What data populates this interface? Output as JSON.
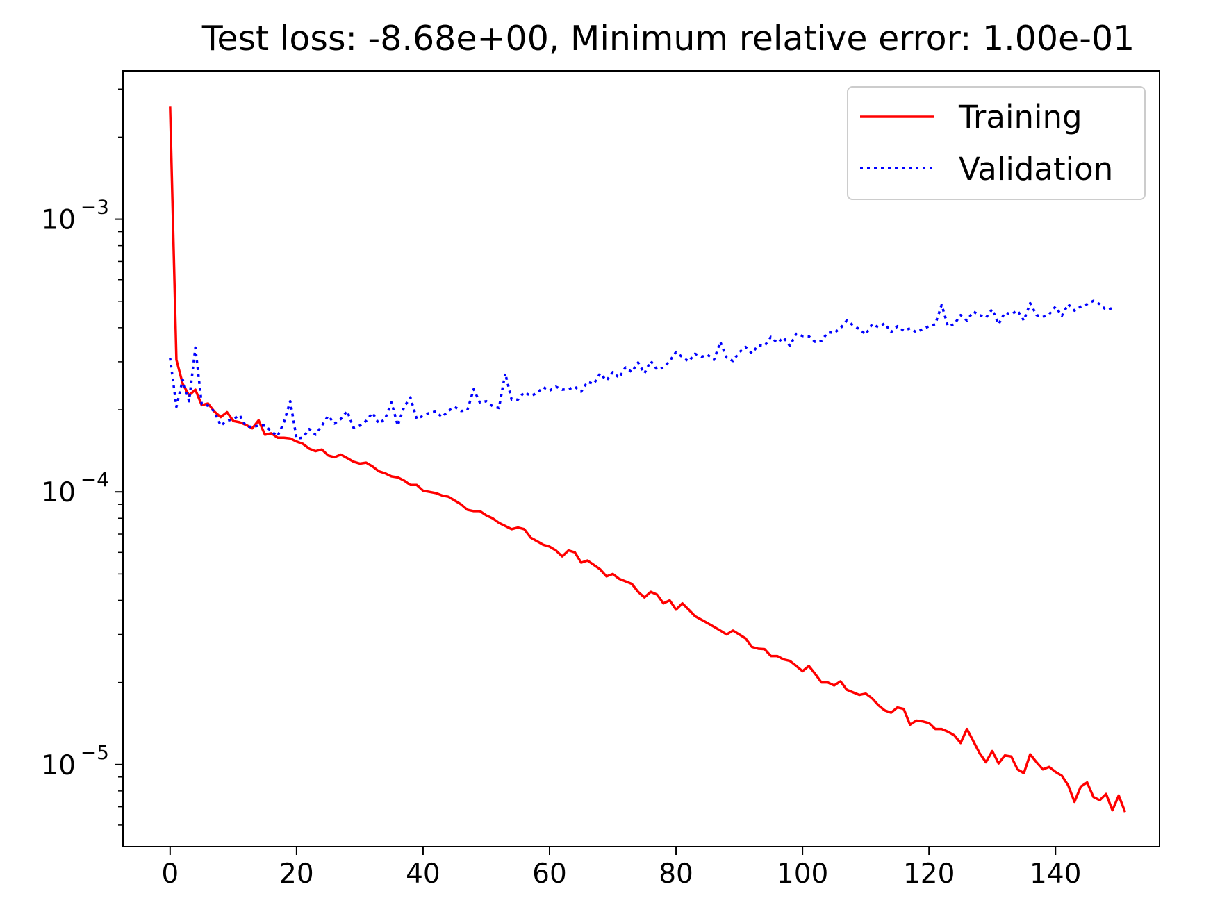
{
  "chart_data": {
    "type": "line",
    "title": "Test loss: -8.68e+00, Minimum relative error: 1.00e-01",
    "xlabel": "",
    "ylabel": "",
    "yscale": "log",
    "xlim": [
      -7.45,
      156.45
    ],
    "ylim": [
      5e-06,
      0.0035
    ],
    "grid": false,
    "legend_position": "top-right",
    "x_ticks": [
      0,
      20,
      40,
      60,
      80,
      100,
      120,
      140
    ],
    "x_tick_labels": [
      "0",
      "20",
      "40",
      "60",
      "80",
      "100",
      "120",
      "140"
    ],
    "y_ticks": [
      1e-05,
      0.0001,
      0.001
    ],
    "y_tick_labels": [
      "10",
      "10",
      "10"
    ],
    "y_tick_exponents": [
      "−5",
      "−4",
      "−3"
    ],
    "series": [
      {
        "name": "Training",
        "color": "#ff0000",
        "style": "solid",
        "x_start": 0,
        "values": [
          0.00259,
          0.000305,
          0.000249,
          0.000226,
          0.000237,
          0.000208,
          0.000211,
          0.000197,
          0.000188,
          0.000196,
          0.000182,
          0.00018,
          0.000176,
          0.000171,
          0.000183,
          0.000162,
          0.000164,
          0.000158,
          0.000158,
          0.000157,
          0.000153,
          0.00015,
          0.000144,
          0.000141,
          0.000143,
          0.000136,
          0.000134,
          0.000137,
          0.000133,
          0.000129,
          0.000127,
          0.000128,
          0.000124,
          0.000119,
          0.000117,
          0.000114,
          0.000113,
          0.00011,
          0.000106,
          0.000106,
          0.000101,
          0.0001,
          9.9e-05,
          9.7e-05,
          9.6e-05,
          9.3e-05,
          9e-05,
          8.6e-05,
          8.5e-05,
          8.5e-05,
          8.2e-05,
          8e-05,
          7.7e-05,
          7.5e-05,
          7.3e-05,
          7.4e-05,
          7.3e-05,
          6.8e-05,
          6.6e-05,
          6.4e-05,
          6.3e-05,
          6.1e-05,
          5.8e-05,
          6.1e-05,
          6e-05,
          5.5e-05,
          5.6e-05,
          5.4e-05,
          5.2e-05,
          4.9e-05,
          5e-05,
          4.8e-05,
          4.7e-05,
          4.6e-05,
          4.3e-05,
          4.1e-05,
          4.3e-05,
          4.2e-05,
          3.9e-05,
          4e-05,
          3.7e-05,
          3.9e-05,
          3.7e-05,
          3.5e-05,
          3.4e-05,
          3.3e-05,
          3.2e-05,
          3.1e-05,
          3e-05,
          3.1e-05,
          3e-05,
          2.9e-05,
          2.7e-05,
          2.66e-05,
          2.65e-05,
          2.5e-05,
          2.5e-05,
          2.43e-05,
          2.4e-05,
          2.3e-05,
          2.2e-05,
          2.3e-05,
          2.15e-05,
          2e-05,
          2e-05,
          1.95e-05,
          2.02e-05,
          1.88e-05,
          1.84e-05,
          1.8e-05,
          1.82e-05,
          1.75e-05,
          1.65e-05,
          1.58e-05,
          1.55e-05,
          1.62e-05,
          1.6e-05,
          1.4e-05,
          1.45e-05,
          1.44e-05,
          1.42e-05,
          1.35e-05,
          1.35e-05,
          1.32e-05,
          1.28e-05,
          1.2e-05,
          1.35e-05,
          1.22e-05,
          1.1e-05,
          1.02e-05,
          1.12e-05,
          1.01e-05,
          1.08e-05,
          1.07e-05,
          9.6e-06,
          9.3e-06,
          1.09e-05,
          1.02e-05,
          9.6e-06,
          9.8e-06,
          9.4e-06,
          9.1e-06,
          8.4e-06,
          7.3e-06,
          8.3e-06,
          8.6e-06,
          7.6e-06,
          7.4e-06,
          7.8e-06,
          6.8e-06,
          7.7e-06,
          6.7e-06
        ]
      },
      {
        "name": "Validation",
        "color": "#0000ff",
        "style": "dotted",
        "x_start": 0,
        "values": [
          0.00031,
          0.000205,
          0.000258,
          0.000215,
          0.000338,
          0.00021,
          0.000207,
          0.000197,
          0.000175,
          0.000182,
          0.000185,
          0.000191,
          0.000174,
          0.000173,
          0.000175,
          0.000175,
          0.000167,
          0.00016,
          0.00018,
          0.000215,
          0.000157,
          0.000158,
          0.00017,
          0.000162,
          0.000175,
          0.00019,
          0.000178,
          0.000185,
          0.000198,
          0.000172,
          0.000175,
          0.000182,
          0.000195,
          0.000178,
          0.000185,
          0.000213,
          0.000175,
          0.000205,
          0.000222,
          0.000185,
          0.00019,
          0.000195,
          0.000197,
          0.000188,
          0.000198,
          0.000205,
          0.000198,
          0.000199,
          0.000238,
          0.000212,
          0.000215,
          0.000206,
          0.000203,
          0.000272,
          0.000218,
          0.000218,
          0.000232,
          0.000225,
          0.00023,
          0.000242,
          0.000235,
          0.000243,
          0.000237,
          0.000238,
          0.000243,
          0.000233,
          0.000253,
          0.000249,
          0.000272,
          0.000256,
          0.000275,
          0.000262,
          0.000286,
          0.000275,
          0.000298,
          0.000272,
          0.000302,
          0.000281,
          0.000285,
          0.000302,
          0.000326,
          0.000312,
          0.000301,
          0.000321,
          0.000313,
          0.000318,
          0.000305,
          0.000355,
          0.000311,
          0.000302,
          0.000325,
          0.00034,
          0.000322,
          0.000345,
          0.000343,
          0.00037,
          0.000352,
          0.000368,
          0.000343,
          0.00038,
          0.000373,
          0.000372,
          0.000355,
          0.000358,
          0.000385,
          0.000383,
          0.000398,
          0.000425,
          0.000408,
          0.000395,
          0.000378,
          0.000412,
          0.000402,
          0.000415,
          0.000385,
          0.000405,
          0.00039,
          0.000398,
          0.000385,
          0.000395,
          0.000405,
          0.000412,
          0.000485,
          0.000405,
          0.000412,
          0.000445,
          0.000425,
          0.000458,
          0.000445,
          0.000435,
          0.000468,
          0.000412,
          0.000455,
          0.000448,
          0.000462,
          0.000425,
          0.000492,
          0.000445,
          0.000438,
          0.000448,
          0.000478,
          0.000442,
          0.000488,
          0.000462,
          0.000478,
          0.000488,
          0.000502,
          0.000488,
          0.000465,
          0.000472
        ]
      }
    ]
  }
}
